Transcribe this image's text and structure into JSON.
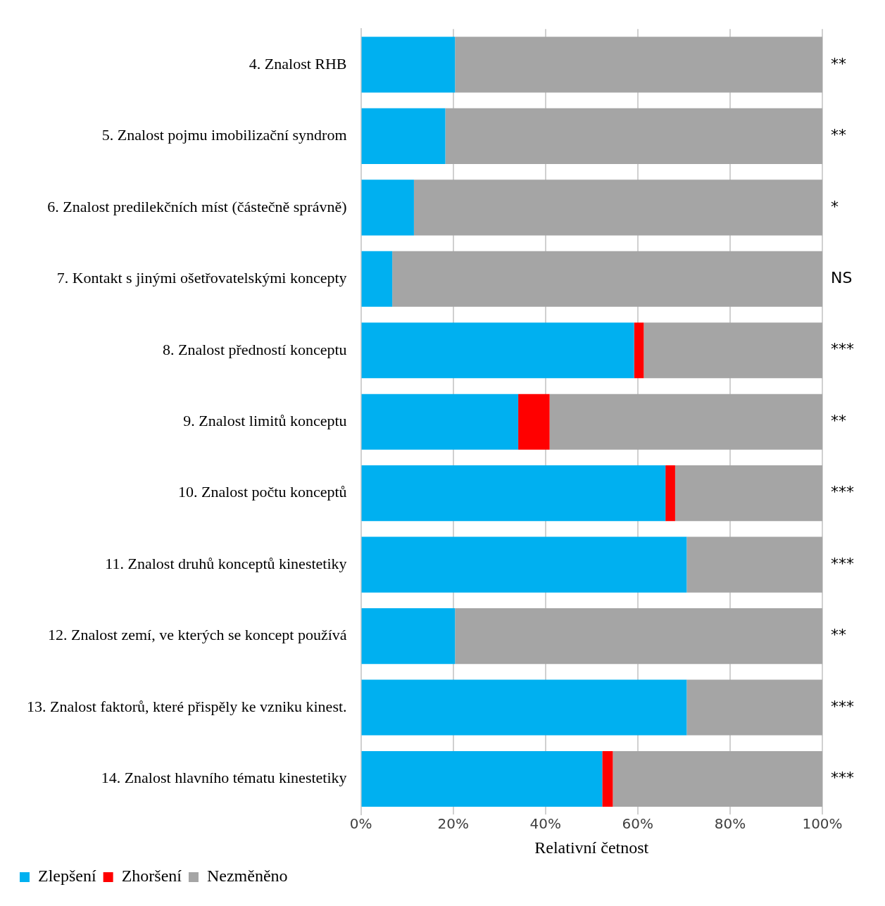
{
  "chart_data": {
    "type": "bar",
    "orientation": "horizontal",
    "stacked": true,
    "categories": [
      "4. Znalost RHB",
      "5. Znalost pojmu imobilizační syndrom",
      "6. Znalost predilekčních míst (částečně správně)",
      "7. Kontakt s jinými ošetřovatelskými koncepty",
      "8. Znalost předností konceptu",
      "9. Znalost limitů konceptu",
      "10. Znalost počtu konceptů",
      "11. Znalost druhů konceptů kinestetiky",
      "12. Znalost zemí, ve kterých se koncept používá",
      "13. Znalost faktorů, které přispěly ke vzniku kinest.",
      "14. Znalost hlavního tématu kinestetiky"
    ],
    "series": [
      {
        "name": "Zlepšení",
        "color": "#00b0f0",
        "values": [
          20.4,
          18.3,
          11.5,
          6.8,
          59.2,
          34.1,
          66.0,
          70.6,
          20.4,
          70.6,
          52.3
        ]
      },
      {
        "name": "Zhoršení",
        "color": "#ff0000",
        "values": [
          0,
          0,
          0,
          0,
          2.1,
          6.8,
          2.1,
          0,
          0,
          0,
          2.3
        ]
      },
      {
        "name": "Nezměněno",
        "color": "#a5a5a5",
        "values": [
          79.6,
          81.7,
          88.5,
          93.2,
          38.7,
          59.1,
          31.9,
          29.4,
          79.6,
          29.4,
          45.4
        ]
      }
    ],
    "xlim": [
      0,
      100
    ],
    "xticks": [
      {
        "value": 0,
        "label": "0%"
      },
      {
        "value": 20,
        "label": "20%"
      },
      {
        "value": 40,
        "label": "40%"
      },
      {
        "value": 60,
        "label": "60%"
      },
      {
        "value": 80,
        "label": "80%"
      },
      {
        "value": 100,
        "label": "100%"
      }
    ],
    "xlabel": "Relativní četnost",
    "grid": "x",
    "legend": "bottom left",
    "annotations": [
      "**",
      "**",
      "*",
      "NS",
      "***",
      "**",
      "***",
      "***",
      "**",
      "***",
      "***"
    ]
  }
}
